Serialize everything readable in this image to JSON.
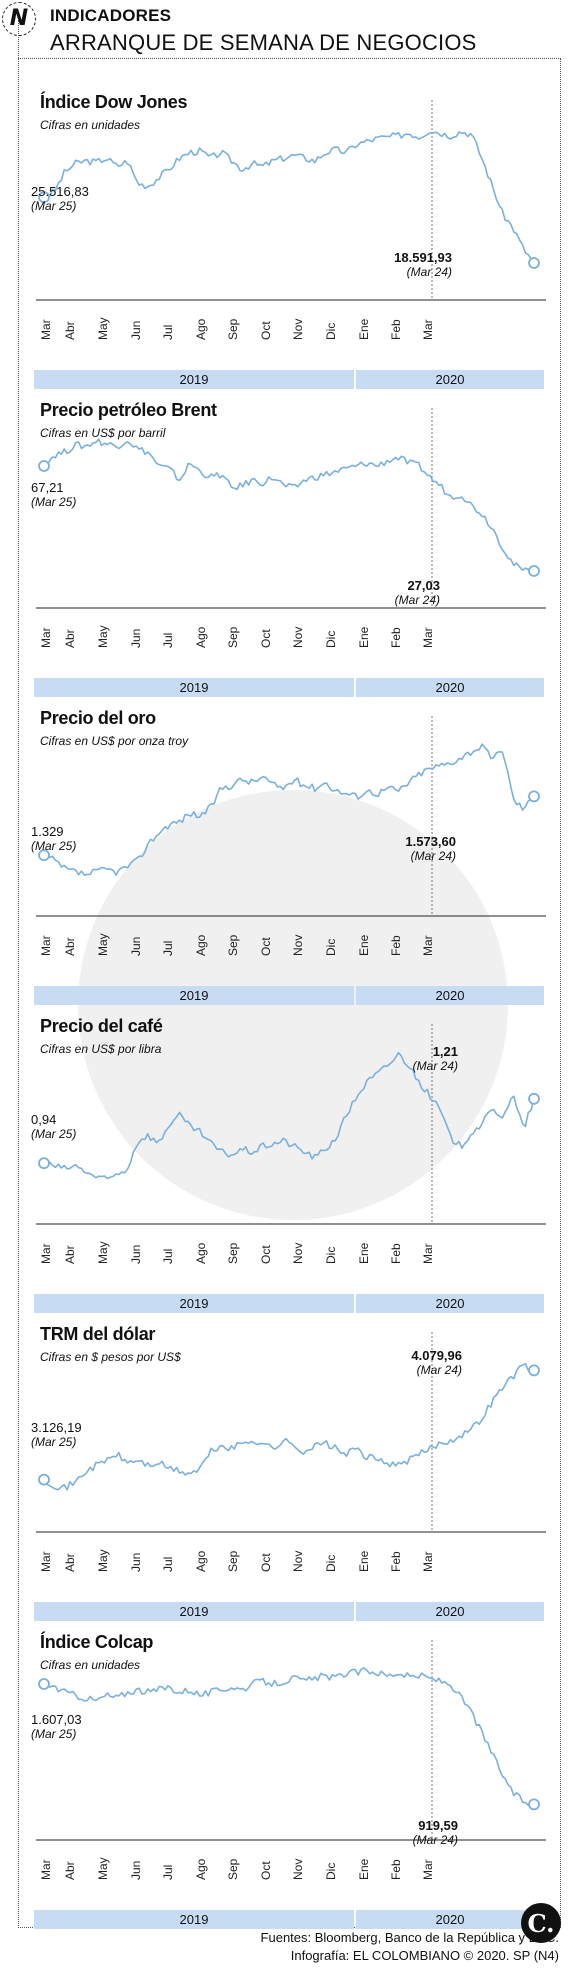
{
  "header": {
    "logo": "N",
    "kicker": "INDICADORES",
    "title": "ARRANQUE DE SEMANA DE NEGOCIOS"
  },
  "months": [
    "Mar",
    "Abr",
    "May",
    "Jun",
    "Jul",
    "Ago",
    "Sep",
    "Oct",
    "Nov",
    "Dic",
    "Ene",
    "Feb",
    "Mar"
  ],
  "years": [
    "2019",
    "2020"
  ],
  "line_color": "#7ab0dc",
  "panels": [
    {
      "title": "Índice Dow Jones",
      "subtitle": "Cifras en unidades",
      "start_value": "25.516,83",
      "start_date": "(Mar 25)",
      "end_value": "18.591,93",
      "end_date": "(Mar 24)"
    },
    {
      "title": "Precio petróleo Brent",
      "subtitle": "Cifras en US$ por barril",
      "start_value": "67,21",
      "start_date": "(Mar 25)",
      "end_value": "27,03",
      "end_date": "(Mar 24)"
    },
    {
      "title": "Precio del oro",
      "subtitle": "Cifras en US$ por onza troy",
      "start_value": "1.329",
      "start_date": "(Mar 25)",
      "end_value": "1.573,60",
      "end_date": "(Mar 24)"
    },
    {
      "title": "Precio del café",
      "subtitle": "Cifras en US$ por libra",
      "start_value": "0,94",
      "start_date": "(Mar 25)",
      "end_value": "1,21",
      "end_date": "(Mar 24)"
    },
    {
      "title": "TRM del dólar",
      "subtitle": "Cifras en $ pesos por US$",
      "start_value": "3.126,19",
      "start_date": "(Mar 25)",
      "end_value": "4.079,96",
      "end_date": "(Mar 24)"
    },
    {
      "title": "Índice Colcap",
      "subtitle": "Cifras en unidades",
      "start_value": "1.607,03",
      "start_date": "(Mar 25)",
      "end_value": "919,59",
      "end_date": "(Mar 24)"
    }
  ],
  "chart_data": [
    {
      "type": "line",
      "title": "Índice Dow Jones",
      "x": [
        "Mar 25 2019",
        "Abr",
        "May",
        "Jun",
        "Jul",
        "Ago",
        "Sep",
        "Oct",
        "Nov",
        "Dic",
        "Ene 2020",
        "Feb",
        "Mar 24 2020"
      ],
      "values": [
        25516.83,
        26400,
        26500,
        25000,
        26700,
        27000,
        26400,
        26800,
        26900,
        27900,
        28600,
        29300,
        18591.93
      ]
    },
    {
      "type": "line",
      "title": "Precio petróleo Brent",
      "x": [
        "Mar 25 2019",
        "Abr",
        "May",
        "Jun",
        "Jul",
        "Ago",
        "Sep",
        "Oct",
        "Nov",
        "Dic",
        "Ene 2020",
        "Feb",
        "Mar 24 2020"
      ],
      "values": [
        67.21,
        71,
        72,
        63,
        64,
        60,
        61,
        59,
        63,
        65,
        66,
        55,
        27.03
      ]
    },
    {
      "type": "line",
      "title": "Precio del oro",
      "x": [
        "Mar 25 2019",
        "Abr",
        "May",
        "Jun",
        "Jul",
        "Ago",
        "Sep",
        "Oct",
        "Nov",
        "Dic",
        "Ene 2020",
        "Feb",
        "Mar 24 2020"
      ],
      "values": [
        1329,
        1285,
        1283,
        1340,
        1415,
        1510,
        1515,
        1500,
        1465,
        1480,
        1555,
        1585,
        1573.6
      ]
    },
    {
      "type": "line",
      "title": "Precio del café",
      "x": [
        "Mar 25 2019",
        "Abr",
        "May",
        "Jun",
        "Jul",
        "Ago",
        "Sep",
        "Oct",
        "Nov",
        "Dic",
        "Ene 2020",
        "Feb",
        "Mar 24 2020"
      ],
      "values": [
        0.94,
        0.93,
        0.9,
        1.0,
        1.06,
        0.98,
        0.97,
        0.99,
        1.05,
        1.33,
        1.25,
        1.02,
        1.21
      ]
    },
    {
      "type": "line",
      "title": "TRM del dólar",
      "x": [
        "Mar 25 2019",
        "Abr",
        "May",
        "Jun",
        "Jul",
        "Ago",
        "Sep",
        "Oct",
        "Nov",
        "Dic",
        "Ene 2020",
        "Feb",
        "Mar 24 2020"
      ],
      "values": [
        3126.19,
        3100,
        3250,
        3200,
        3200,
        3430,
        3400,
        3430,
        3420,
        3300,
        3280,
        3400,
        4079.96
      ]
    },
    {
      "type": "line",
      "title": "Índice Colcap",
      "x": [
        "Mar 25 2019",
        "Abr",
        "May",
        "Jun",
        "Jul",
        "Ago",
        "Sep",
        "Oct",
        "Nov",
        "Dic",
        "Ene 2020",
        "Feb",
        "Mar 24 2020"
      ],
      "values": [
        1607.03,
        1580,
        1560,
        1550,
        1590,
        1560,
        1570,
        1600,
        1620,
        1650,
        1660,
        1640,
        919.59
      ]
    }
  ],
  "footer": {
    "sources": "Fuentes: Bloomberg, Banco de la República y BVC.",
    "credit": "Infografía: EL COLOMBIANO © 2020. SP (N4)",
    "badge": "C."
  }
}
